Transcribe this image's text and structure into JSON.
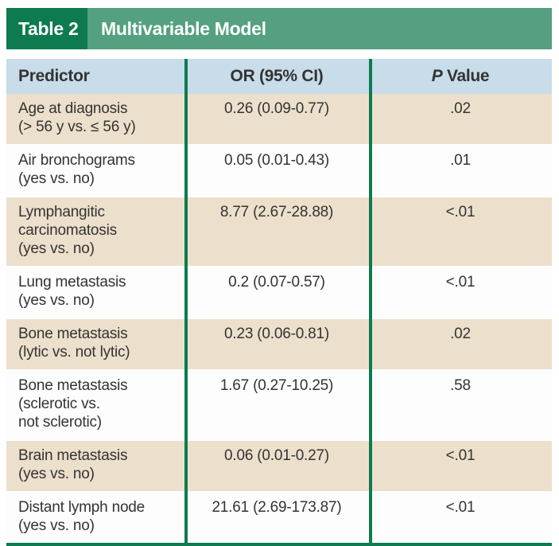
{
  "title": {
    "table_label": "Table 2",
    "table_title": "Multivariable Model"
  },
  "colors": {
    "dark_green": "#0e7a50",
    "band_green": "#54a081",
    "header_blue": "#c8dcea",
    "row_tan": "#ece0cc",
    "row_white": "#fdfdfd",
    "text": "#333333"
  },
  "table": {
    "headers": {
      "predictor": "Predictor",
      "or": "OR (95% CI)",
      "p_italic": "P",
      "p_rest": " Value"
    },
    "rows": [
      {
        "predictor": "Age at diagnosis\n(> 56 y vs. ≤ 56 y)",
        "or": "0.26 (0.09-0.77)",
        "p": ".02"
      },
      {
        "predictor": "Air bronchograms\n(yes vs. no)",
        "or": "0.05 (0.01-0.43)",
        "p": ".01"
      },
      {
        "predictor": "Lymphangitic\ncarcinomatosis\n(yes vs. no)",
        "or": "8.77 (2.67-28.88)",
        "p": "<.01"
      },
      {
        "predictor": "Lung metastasis\n(yes vs. no)",
        "or": "0.2 (0.07-0.57)",
        "p": "<.01"
      },
      {
        "predictor": "Bone metastasis\n(lytic vs. not lytic)",
        "or": "0.23 (0.06-0.81)",
        "p": ".02"
      },
      {
        "predictor": "Bone metastasis\n(sclerotic vs.\nnot sclerotic)",
        "or": "1.67 (0.27-10.25)",
        "p": ".58"
      },
      {
        "predictor": "Brain metastasis\n(yes vs. no)",
        "or": "0.06 (0.01-0.27)",
        "p": "<.01"
      },
      {
        "predictor": "Distant lymph node\n(yes vs. no)",
        "or": "21.61 (2.69-173.87)",
        "p": "<.01"
      }
    ]
  },
  "chart_data": {
    "type": "table",
    "title": "Table 2 Multivariable Model",
    "columns": [
      "Predictor",
      "OR (95% CI)",
      "P Value"
    ],
    "rows": [
      [
        "Age at diagnosis (> 56 y vs. ≤ 56 y)",
        "0.26 (0.09-0.77)",
        ".02"
      ],
      [
        "Air bronchograms (yes vs. no)",
        "0.05 (0.01-0.43)",
        ".01"
      ],
      [
        "Lymphangitic carcinomatosis (yes vs. no)",
        "8.77 (2.67-28.88)",
        "<.01"
      ],
      [
        "Lung metastasis (yes vs. no)",
        "0.2 (0.07-0.57)",
        "<.01"
      ],
      [
        "Bone metastasis (lytic vs. not lytic)",
        "0.23 (0.06-0.81)",
        ".02"
      ],
      [
        "Bone metastasis (sclerotic vs. not sclerotic)",
        "1.67 (0.27-10.25)",
        ".58"
      ],
      [
        "Brain metastasis (yes vs. no)",
        "0.06 (0.01-0.27)",
        "<.01"
      ],
      [
        "Distant lymph node (yes vs. no)",
        "21.61 (2.69-173.87)",
        "<.01"
      ]
    ]
  }
}
